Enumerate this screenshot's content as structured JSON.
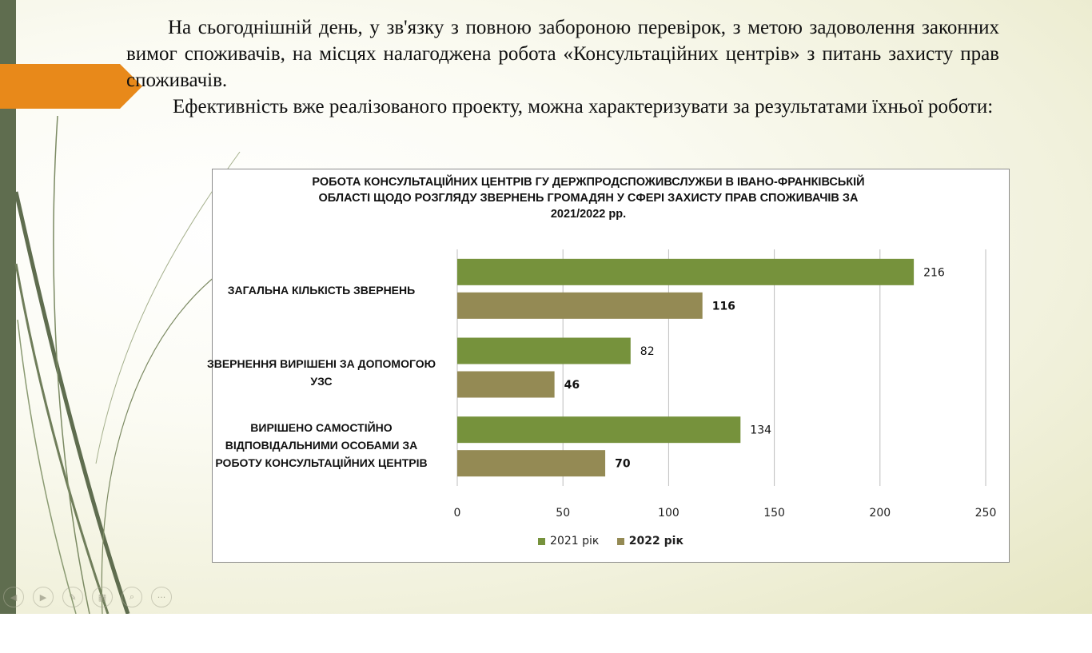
{
  "slide": {
    "paragraph1": "На сьогоднішній  день, у зв'язку з повною забороною перевірок, з метою задоволення законних вимог споживачів, на місцях налагоджена робота «Консультаційних центрів» з питань захисту прав споживачів.",
    "paragraph2": "Ефективність вже реалізованого  проекту, можна характеризувати за результатами їхньої роботи:",
    "accent_color": "#e8891a",
    "sidebar_color": "#5f6d4f"
  },
  "nav_controls": [
    {
      "icon": "previous-icon",
      "glyph": "◀"
    },
    {
      "icon": "next-icon",
      "glyph": "▶"
    },
    {
      "icon": "pen-icon",
      "glyph": "✎"
    },
    {
      "icon": "slides-icon",
      "glyph": "▦"
    },
    {
      "icon": "zoom-icon",
      "glyph": "⌕"
    },
    {
      "icon": "more-icon",
      "glyph": "···"
    }
  ],
  "chart_data": {
    "type": "bar",
    "orientation": "horizontal",
    "title": "РОБОТА КОНСУЛЬТАЦІЙНИХ ЦЕНТРІВ ГУ ДЕРЖПРОДСПОЖИВСЛУЖБИ В ІВАНО-ФРАНКІВСЬКІЙ ОБЛАСТІ ЩОДО РОЗГЛЯДУ ЗВЕРНЕНЬ ГРОМАДЯН У СФЕРІ ЗАХИСТУ ПРАВ СПОЖИВАЧІВ ЗА 2021/2022 рр.",
    "categories": [
      "ЗАГАЛЬНА КІЛЬКІСТЬ  ЗВЕРНЕНЬ",
      "ЗВЕРНЕННЯ ВИРІШЕНІ ЗА ДОПОМОГОЮ УЗС",
      "ВИРІШЕНО САМОСТІЙНО ВІДПОВІДАЛЬНИМИ ОСОБАМИ ЗА РОБОТУ КОНСУЛЬТАЦІЙНИХ ЦЕНТРІВ"
    ],
    "series": [
      {
        "name": "2021 рік",
        "values": [
          216,
          82,
          134
        ],
        "color": "#76923c",
        "bold_labels": false
      },
      {
        "name": "2022 рік",
        "values": [
          116,
          46,
          70
        ],
        "color": "#948a54",
        "bold_labels": true
      }
    ],
    "xlim": [
      0,
      250
    ],
    "xticks": [
      0,
      50,
      100,
      150,
      200,
      250
    ],
    "grid": true,
    "legend": "bottom"
  }
}
